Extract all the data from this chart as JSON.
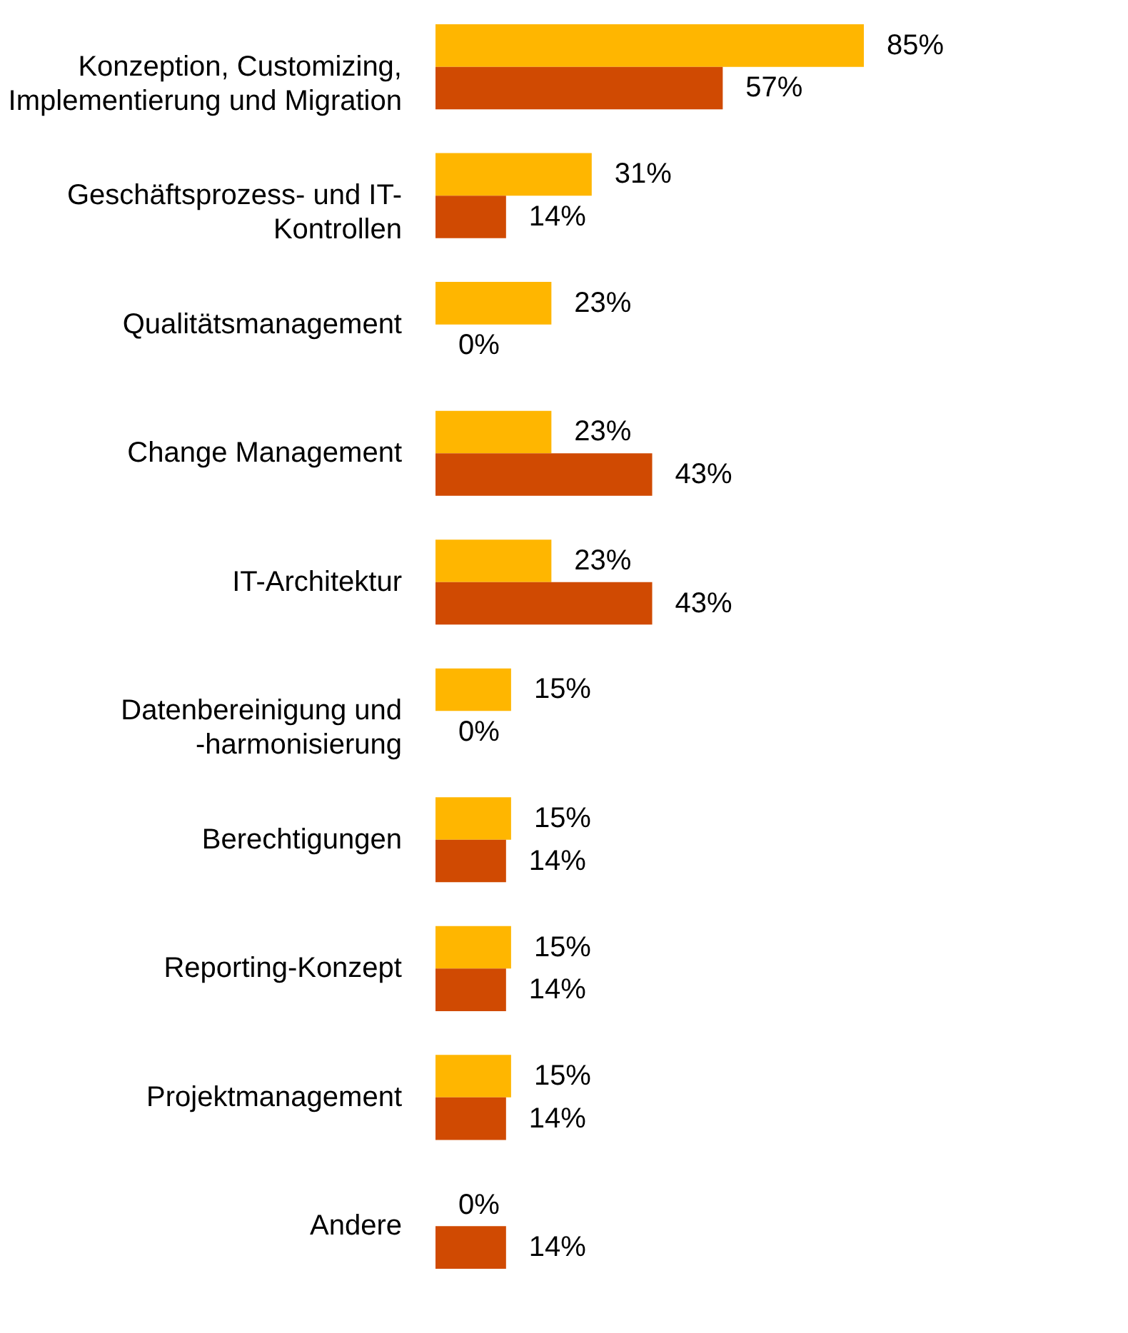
{
  "chart_data": {
    "type": "bar",
    "orientation": "horizontal",
    "grid": false,
    "categories": [
      "Konzeption, Customizing, Implementierung und Migration",
      "Geschäftsprozess- und IT-Kontrollen",
      "Qualitätsmanagement",
      "Change Management",
      "IT-Architektur",
      "Datenbereinigung und -harmonisierung",
      "Berechtigungen",
      "Reporting-Konzept",
      "Projektmanagement",
      "Andere"
    ],
    "series": [
      {
        "color": "#ffb600",
        "values": [
          85,
          31,
          23,
          23,
          23,
          15,
          15,
          15,
          15,
          0
        ],
        "value_labels": [
          "85%",
          "31%",
          "23%",
          "23%",
          "23%",
          "15%",
          "15%",
          "15%",
          "15%",
          "0%"
        ]
      },
      {
        "color": "#d04a02",
        "values": [
          57,
          14,
          0,
          43,
          43,
          0,
          14,
          14,
          14,
          14
        ],
        "value_labels": [
          "57%",
          "14%",
          "0%",
          "43%",
          "43%",
          "0%",
          "14%",
          "14%",
          "14%",
          "14%"
        ]
      }
    ]
  }
}
